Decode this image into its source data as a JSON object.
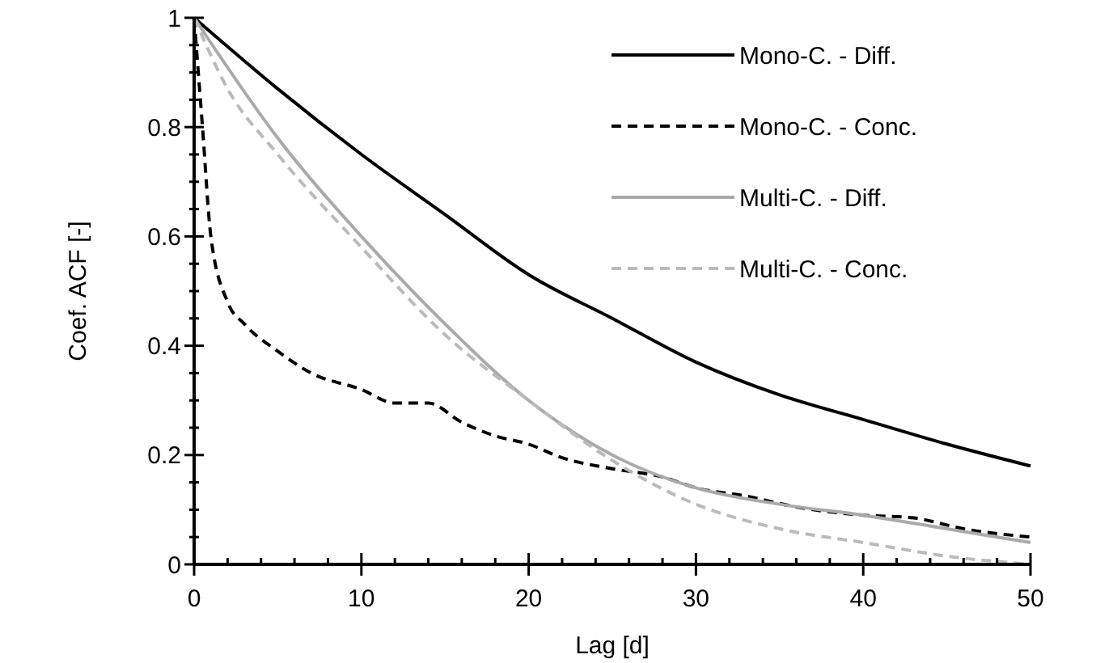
{
  "chart_data": {
    "type": "line",
    "xlabel": "Lag [d]",
    "ylabel": "Coef. ACF [-]",
    "xlim": [
      0,
      50
    ],
    "ylim": [
      0,
      1
    ],
    "xticks": [
      0,
      {
        "value": 2,
        "label": null
      },
      {
        "value": 4,
        "label": null
      },
      {
        "value": 6,
        "label": null
      },
      {
        "value": 8,
        "label": null
      },
      10,
      {
        "value": 12,
        "label": null
      },
      {
        "value": 14,
        "label": null
      },
      {
        "value": 16,
        "label": null
      },
      {
        "value": 18,
        "label": null
      },
      20,
      {
        "value": 22,
        "label": null
      },
      {
        "value": 24,
        "label": null
      },
      {
        "value": 26,
        "label": null
      },
      {
        "value": 28,
        "label": null
      },
      30,
      {
        "value": 32,
        "label": null
      },
      {
        "value": 34,
        "label": null
      },
      {
        "value": 36,
        "label": null
      },
      {
        "value": 38,
        "label": null
      },
      40,
      {
        "value": 42,
        "label": null
      },
      {
        "value": 44,
        "label": null
      },
      {
        "value": 46,
        "label": null
      },
      {
        "value": 48,
        "label": null
      },
      50
    ],
    "yticks": [
      0,
      {
        "value": 0.05,
        "label": null
      },
      {
        "value": 0.1,
        "label": null
      },
      {
        "value": 0.15,
        "label": null
      },
      0.2,
      {
        "value": 0.25,
        "label": null
      },
      {
        "value": 0.3,
        "label": null
      },
      {
        "value": 0.35,
        "label": null
      },
      0.4,
      {
        "value": 0.45,
        "label": null
      },
      {
        "value": 0.5,
        "label": null
      },
      {
        "value": 0.55,
        "label": null
      },
      0.6,
      {
        "value": 0.65,
        "label": null
      },
      {
        "value": 0.7,
        "label": null
      },
      {
        "value": 0.75,
        "label": null
      },
      0.8,
      {
        "value": 0.85,
        "label": null
      },
      {
        "value": 0.9,
        "label": null
      },
      {
        "value": 0.95,
        "label": null
      },
      1
    ],
    "grid": false,
    "legend": "top right",
    "marker": "none",
    "series": [
      {
        "name": "Mono-C. - Diff.",
        "color": "#000000",
        "line_style": "solid",
        "x": [
          0,
          5,
          10,
          15,
          20,
          25,
          30,
          35,
          40,
          45,
          50
        ],
        "values": [
          1,
          0.87,
          0.75,
          0.64,
          0.53,
          0.45,
          0.37,
          0.31,
          0.265,
          0.22,
          0.18
        ]
      },
      {
        "name": "Mono-C. - Conc.",
        "color": "#000000",
        "line_style": "dashed",
        "x": [
          0,
          0.5,
          1,
          2,
          3,
          5,
          7,
          10,
          12,
          14,
          16,
          18,
          20,
          22,
          25,
          28,
          30,
          33,
          36,
          40,
          43,
          46,
          50
        ],
        "values": [
          1,
          0.8,
          0.6,
          0.48,
          0.44,
          0.39,
          0.35,
          0.32,
          0.295,
          0.295,
          0.26,
          0.235,
          0.22,
          0.195,
          0.175,
          0.16,
          0.14,
          0.125,
          0.105,
          0.09,
          0.085,
          0.065,
          0.05
        ]
      },
      {
        "name": "Multi-C. - Diff.",
        "color": "#aaaaaa",
        "line_style": "solid",
        "x": [
          0,
          5,
          10,
          15,
          20,
          25,
          30,
          35,
          40,
          45,
          50
        ],
        "values": [
          1,
          0.78,
          0.6,
          0.44,
          0.3,
          0.2,
          0.14,
          0.11,
          0.09,
          0.065,
          0.04
        ]
      },
      {
        "name": "Multi-C. - Conc.",
        "color": "#bbbbbb",
        "line_style": "dashed",
        "x": [
          0,
          2,
          5,
          10,
          15,
          20,
          25,
          30,
          35,
          40,
          45,
          50
        ],
        "values": [
          1,
          0.87,
          0.75,
          0.58,
          0.42,
          0.3,
          0.19,
          0.11,
          0.065,
          0.04,
          0.015,
          0
        ]
      }
    ]
  }
}
